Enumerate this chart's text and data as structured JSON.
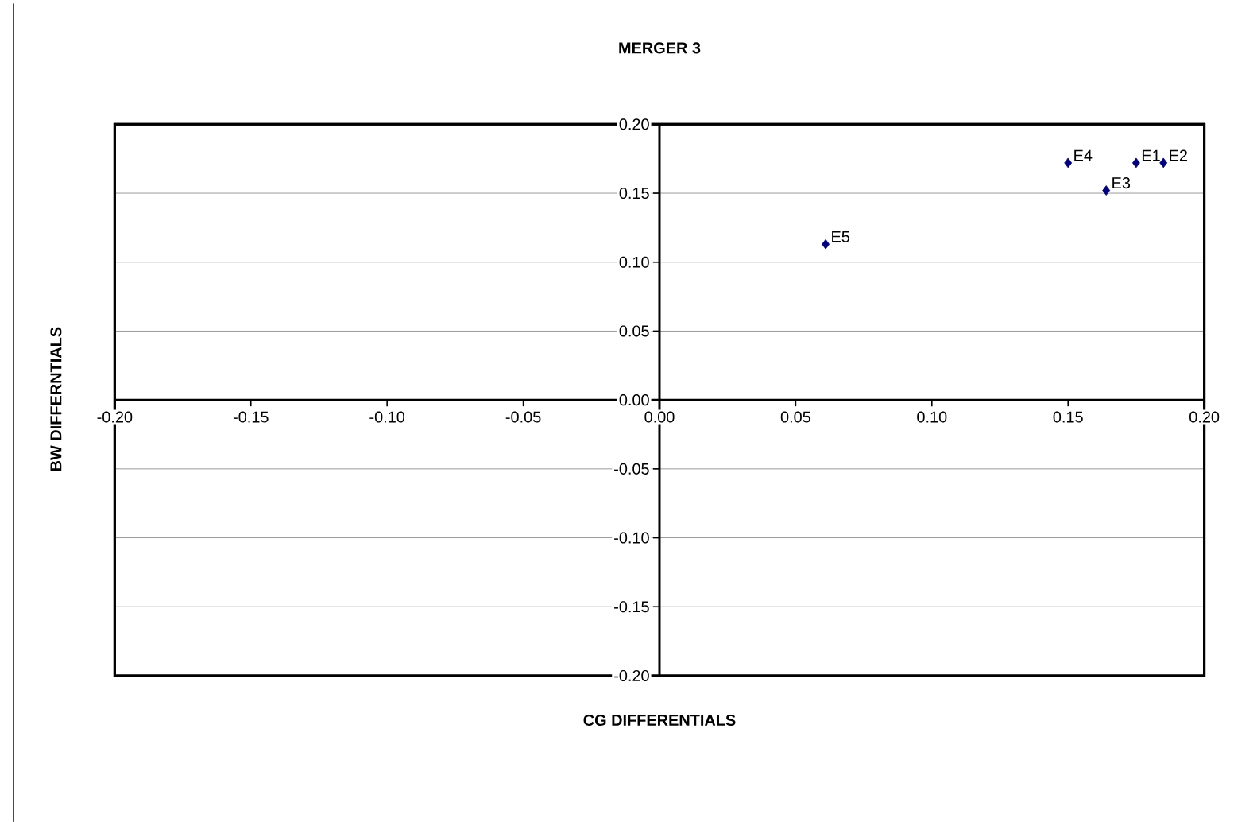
{
  "chart_data": {
    "type": "scatter",
    "title": "MERGER 3",
    "xlabel": "CG DIFFERENTIALS",
    "ylabel": "BW DIFFERNTIALS",
    "x": [
      0.175,
      0.185,
      0.164,
      0.15,
      0.061
    ],
    "series": [
      {
        "color": "#000080",
        "values": [
          0.172,
          0.172,
          0.152,
          0.172,
          0.113
        ]
      }
    ],
    "annotations": [
      {
        "text": "E1",
        "x": 0.175,
        "y": 0.172
      },
      {
        "text": "E2",
        "x": 0.185,
        "y": 0.172
      },
      {
        "text": "E3",
        "x": 0.164,
        "y": 0.152
      },
      {
        "text": "E4",
        "x": 0.15,
        "y": 0.172
      },
      {
        "text": "E5",
        "x": 0.061,
        "y": 0.113
      }
    ],
    "xlim": [
      -0.2,
      0.2
    ],
    "ylim": [
      -0.2,
      0.2
    ],
    "xticks": [
      {
        "value": -0.2,
        "label": "-0.20"
      },
      {
        "value": -0.15,
        "label": "-0.15"
      },
      {
        "value": -0.1,
        "label": "-0.10"
      },
      {
        "value": -0.05,
        "label": "-0.05"
      },
      {
        "value": 0,
        "label": "0.00"
      },
      {
        "value": 0.05,
        "label": "0.05"
      },
      {
        "value": 0.1,
        "label": "0.10"
      },
      {
        "value": 0.15,
        "label": "0.15"
      },
      {
        "value": 0.2,
        "label": "0.20"
      }
    ],
    "yticks": [
      {
        "value": -0.2,
        "label": "-0.20"
      },
      {
        "value": -0.15,
        "label": "-0.15"
      },
      {
        "value": -0.1,
        "label": "-0.10"
      },
      {
        "value": -0.05,
        "label": "-0.05"
      },
      {
        "value": 0,
        "label": "0.00"
      },
      {
        "value": 0.05,
        "label": "0.05"
      },
      {
        "value": 0.1,
        "label": "0.10"
      },
      {
        "value": 0.15,
        "label": "0.15"
      },
      {
        "value": 0.2,
        "label": "0.20"
      }
    ],
    "grid": "y",
    "marker": "diamond"
  }
}
